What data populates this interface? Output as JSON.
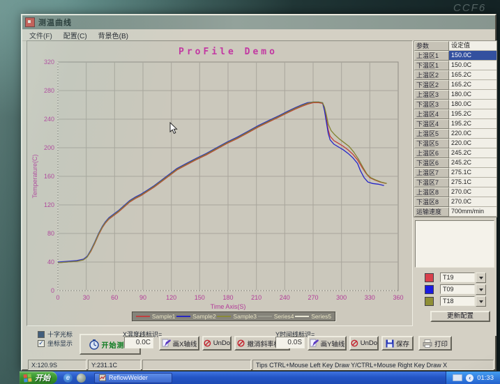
{
  "window": {
    "title": "测温曲线",
    "menu": [
      {
        "label": "文件(F)"
      },
      {
        "label": "配置(C)"
      },
      {
        "label": "背景色(B)"
      }
    ]
  },
  "chart_data": {
    "type": "line",
    "title": "ProFile Demo",
    "xlabel": "Time Axis(S)",
    "ylabel": "Temperature(C)",
    "xlim": [
      0,
      360
    ],
    "ylim": [
      0,
      320
    ],
    "xticks": [
      0,
      30,
      60,
      90,
      120,
      150,
      180,
      210,
      240,
      270,
      300,
      330,
      360
    ],
    "yticks": [
      0,
      40,
      80,
      120,
      160,
      200,
      240,
      280,
      320
    ],
    "grid": true,
    "legend_position": "bottom",
    "legend": [
      "Sample1",
      "Sample2",
      "Sample3",
      "Series4",
      "Series5"
    ],
    "legend_colors": [
      "#c04040",
      "#2828c0",
      "#8a8a38",
      "#9a9a8e",
      "#e8e6d4"
    ],
    "tick_color": "#b23a98",
    "series": [
      {
        "name": "T19",
        "color": "#c03c3c",
        "points": [
          [
            0,
            39
          ],
          [
            10,
            40
          ],
          [
            20,
            41
          ],
          [
            27,
            43
          ],
          [
            31,
            47
          ],
          [
            35,
            55
          ],
          [
            39,
            66
          ],
          [
            43,
            78
          ],
          [
            47,
            88
          ],
          [
            50,
            94
          ],
          [
            54,
            100
          ],
          [
            59,
            105
          ],
          [
            64,
            110
          ],
          [
            70,
            117
          ],
          [
            76,
            124
          ],
          [
            82,
            129
          ],
          [
            88,
            133
          ],
          [
            95,
            139
          ],
          [
            102,
            145
          ],
          [
            110,
            153
          ],
          [
            118,
            161
          ],
          [
            126,
            169
          ],
          [
            136,
            176
          ],
          [
            146,
            183
          ],
          [
            157,
            190
          ],
          [
            168,
            198
          ],
          [
            179,
            206
          ],
          [
            190,
            213
          ],
          [
            201,
            221
          ],
          [
            212,
            229
          ],
          [
            223,
            236
          ],
          [
            234,
            243
          ],
          [
            243,
            249
          ],
          [
            251,
            254
          ],
          [
            258,
            258
          ],
          [
            264,
            261
          ],
          [
            270,
            263
          ],
          [
            276,
            263
          ],
          [
            280,
            262
          ],
          [
            282,
            254
          ],
          [
            284,
            240
          ],
          [
            286,
            225
          ],
          [
            288,
            216
          ],
          [
            292,
            210
          ],
          [
            297,
            206
          ],
          [
            302,
            202
          ],
          [
            307,
            197
          ],
          [
            312,
            191
          ],
          [
            317,
            183
          ],
          [
            322,
            172
          ],
          [
            326,
            164
          ],
          [
            330,
            158
          ],
          [
            335,
            155
          ],
          [
            341,
            152
          ],
          [
            347,
            150
          ]
        ]
      },
      {
        "name": "T09",
        "color": "#2424c8",
        "points": [
          [
            0,
            40
          ],
          [
            10,
            41
          ],
          [
            20,
            42
          ],
          [
            27,
            44
          ],
          [
            31,
            48
          ],
          [
            35,
            57
          ],
          [
            39,
            68
          ],
          [
            43,
            80
          ],
          [
            47,
            90
          ],
          [
            50,
            96
          ],
          [
            54,
            102
          ],
          [
            59,
            107
          ],
          [
            64,
            112
          ],
          [
            70,
            119
          ],
          [
            76,
            126
          ],
          [
            82,
            131
          ],
          [
            88,
            135
          ],
          [
            95,
            141
          ],
          [
            102,
            147
          ],
          [
            110,
            155
          ],
          [
            118,
            163
          ],
          [
            126,
            171
          ],
          [
            136,
            178
          ],
          [
            146,
            185
          ],
          [
            157,
            192
          ],
          [
            168,
            200
          ],
          [
            179,
            208
          ],
          [
            190,
            215
          ],
          [
            201,
            223
          ],
          [
            212,
            231
          ],
          [
            223,
            238
          ],
          [
            234,
            245
          ],
          [
            243,
            251
          ],
          [
            251,
            256
          ],
          [
            258,
            260
          ],
          [
            264,
            263
          ],
          [
            270,
            264
          ],
          [
            276,
            264
          ],
          [
            280,
            263
          ],
          [
            282,
            252
          ],
          [
            284,
            236
          ],
          [
            286,
            220
          ],
          [
            288,
            211
          ],
          [
            292,
            205
          ],
          [
            297,
            201
          ],
          [
            302,
            197
          ],
          [
            307,
            192
          ],
          [
            312,
            186
          ],
          [
            317,
            178
          ],
          [
            320,
            168
          ],
          [
            324,
            158
          ],
          [
            328,
            152
          ],
          [
            333,
            150
          ],
          [
            339,
            149
          ],
          [
            345,
            147
          ]
        ]
      },
      {
        "name": "T18",
        "color": "#828230",
        "points": [
          [
            0,
            39
          ],
          [
            10,
            40
          ],
          [
            20,
            41
          ],
          [
            27,
            43
          ],
          [
            31,
            47
          ],
          [
            35,
            56
          ],
          [
            39,
            67
          ],
          [
            43,
            79
          ],
          [
            47,
            89
          ],
          [
            50,
            95
          ],
          [
            54,
            101
          ],
          [
            59,
            106
          ],
          [
            64,
            111
          ],
          [
            70,
            118
          ],
          [
            76,
            125
          ],
          [
            82,
            130
          ],
          [
            88,
            134
          ],
          [
            95,
            140
          ],
          [
            102,
            146
          ],
          [
            110,
            154
          ],
          [
            118,
            162
          ],
          [
            126,
            170
          ],
          [
            136,
            177
          ],
          [
            146,
            184
          ],
          [
            157,
            191
          ],
          [
            168,
            199
          ],
          [
            179,
            207
          ],
          [
            190,
            214
          ],
          [
            201,
            222
          ],
          [
            212,
            230
          ],
          [
            223,
            237
          ],
          [
            234,
            244
          ],
          [
            243,
            250
          ],
          [
            251,
            255
          ],
          [
            258,
            259
          ],
          [
            264,
            262
          ],
          [
            270,
            264
          ],
          [
            276,
            264
          ],
          [
            280,
            263
          ],
          [
            282,
            257
          ],
          [
            284,
            246
          ],
          [
            286,
            233
          ],
          [
            289,
            224
          ],
          [
            293,
            218
          ],
          [
            298,
            212
          ],
          [
            303,
            207
          ],
          [
            308,
            202
          ],
          [
            313,
            194
          ],
          [
            318,
            184
          ],
          [
            323,
            172
          ],
          [
            327,
            163
          ],
          [
            331,
            158
          ],
          [
            336,
            155
          ],
          [
            342,
            152
          ],
          [
            348,
            150
          ]
        ]
      }
    ]
  },
  "right_panel": {
    "headers": [
      "参数",
      "设定值"
    ],
    "rows": [
      [
        "上温区1",
        "150.0C"
      ],
      [
        "下温区1",
        "150.0C"
      ],
      [
        "上温区2",
        "165.2C"
      ],
      [
        "下温区2",
        "165.2C"
      ],
      [
        "上温区3",
        "180.0C"
      ],
      [
        "下温区3",
        "180.0C"
      ],
      [
        "上温区4",
        "195.2C"
      ],
      [
        "下温区4",
        "195.2C"
      ],
      [
        "上温区5",
        "220.0C"
      ],
      [
        "下温区5",
        "220.0C"
      ],
      [
        "上温区6",
        "245.2C"
      ],
      [
        "下温区6",
        "245.2C"
      ],
      [
        "上温区7",
        "275.1C"
      ],
      [
        "下温区7",
        "275.1C"
      ],
      [
        "上温区8",
        "270.0C"
      ],
      [
        "下温区8",
        "270.0C"
      ],
      [
        "运输速度",
        "700mm/min"
      ]
    ],
    "selected_index": 0,
    "channels": [
      {
        "color": "#d8404c",
        "label": "T19"
      },
      {
        "color": "#1a1ae0",
        "label": "T09"
      },
      {
        "color": "#8f8f36",
        "label": "T18"
      }
    ],
    "update_label": "更新配置"
  },
  "controls": {
    "crosshair_label": "十字光标",
    "coords_label": "坐标显示",
    "start_label": "开始测温",
    "x_marker_label": "X温度线标识=",
    "x_marker_value": "0.0C",
    "draw_x_label": "画X轴线",
    "undo_label": "UnDo",
    "undo_slope_label": "撤消斜率标识",
    "y_marker_label": "Y时间线标识=",
    "y_marker_value": "0.0S",
    "draw_y_label": "画Y轴线",
    "save_label": "保存",
    "print_label": "打印"
  },
  "status": {
    "x": "X:120.9S",
    "y": "Y:231.1C",
    "tips": "Tips CTRL+Mouse Left Key Draw Y/CTRL+Mouse Right Key Draw X"
  },
  "taskbar": {
    "start_label": "开始",
    "task_label": "ReflowWelder",
    "clock": "01:33"
  },
  "watermark": {
    "text": "CCF6"
  }
}
